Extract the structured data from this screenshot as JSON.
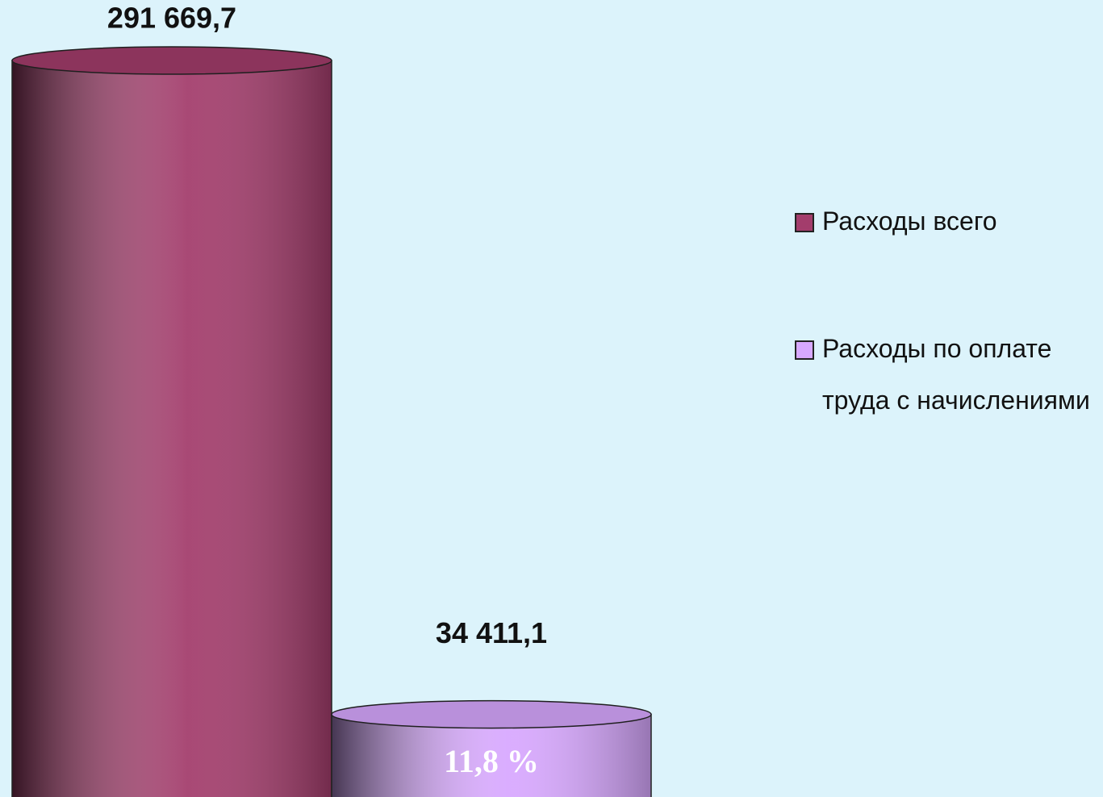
{
  "chart_data": {
    "type": "cylinder-bar",
    "categories": [
      null
    ],
    "series": [
      {
        "name": "Расходы всего",
        "color": "#a33d6c",
        "values": [
          291669.7
        ],
        "value_labels": [
          "291 669,7"
        ]
      },
      {
        "name": "Расходы по оплате труда с начислениями",
        "color": "#d8a8ff",
        "values": [
          34411.1
        ],
        "value_labels": [
          "34 411,1"
        ]
      }
    ],
    "annotations": [
      "11,8 %"
    ],
    "legend": "right"
  }
}
